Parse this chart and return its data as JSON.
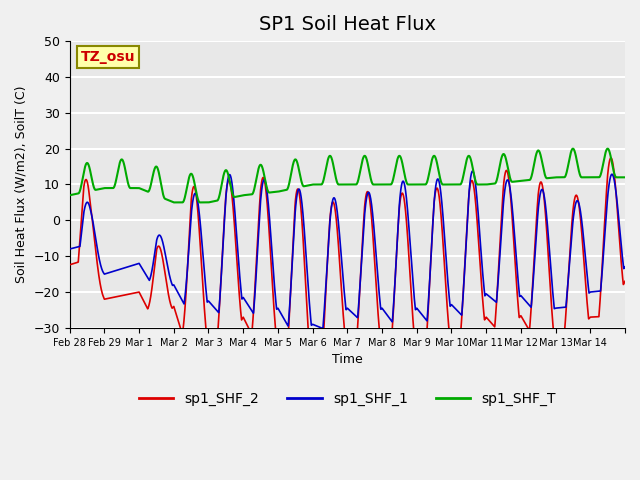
{
  "title": "SP1 Soil Heat Flux",
  "ylabel": "Soil Heat Flux (W/m2), SoilT (C)",
  "xlabel": "Time",
  "ylim": [
    -30,
    50
  ],
  "yticks": [
    -30,
    -20,
    -10,
    0,
    10,
    20,
    30,
    40,
    50
  ],
  "x_tick_positions": [
    0,
    1,
    2,
    3,
    4,
    5,
    6,
    7,
    8,
    9,
    10,
    11,
    12,
    13,
    14,
    15,
    16
  ],
  "x_tick_labels": [
    "Feb 28",
    "Feb 29",
    "Mar 1",
    "Mar 2",
    "Mar 3",
    "Mar 4",
    "Mar 5",
    "Mar 6",
    "Mar 7",
    "Mar 8",
    "Mar 9",
    "Mar 10",
    "Mar 11",
    "Mar 12",
    "Mar 13",
    "Mar 14",
    ""
  ],
  "annotation_text": "TZ_osu",
  "annotation_color": "#cc0000",
  "annotation_bg": "#ffffaa",
  "annotation_border": "#888800",
  "line_colors": [
    "#dd0000",
    "#0000cc",
    "#00aa00"
  ],
  "line_labels": [
    "sp1_SHF_2",
    "sp1_SHF_1",
    "sp1_SHF_T"
  ],
  "background_color": "#e8e8e8",
  "grid_color": "#ffffff",
  "title_fontsize": 14,
  "legend_fontsize": 10
}
